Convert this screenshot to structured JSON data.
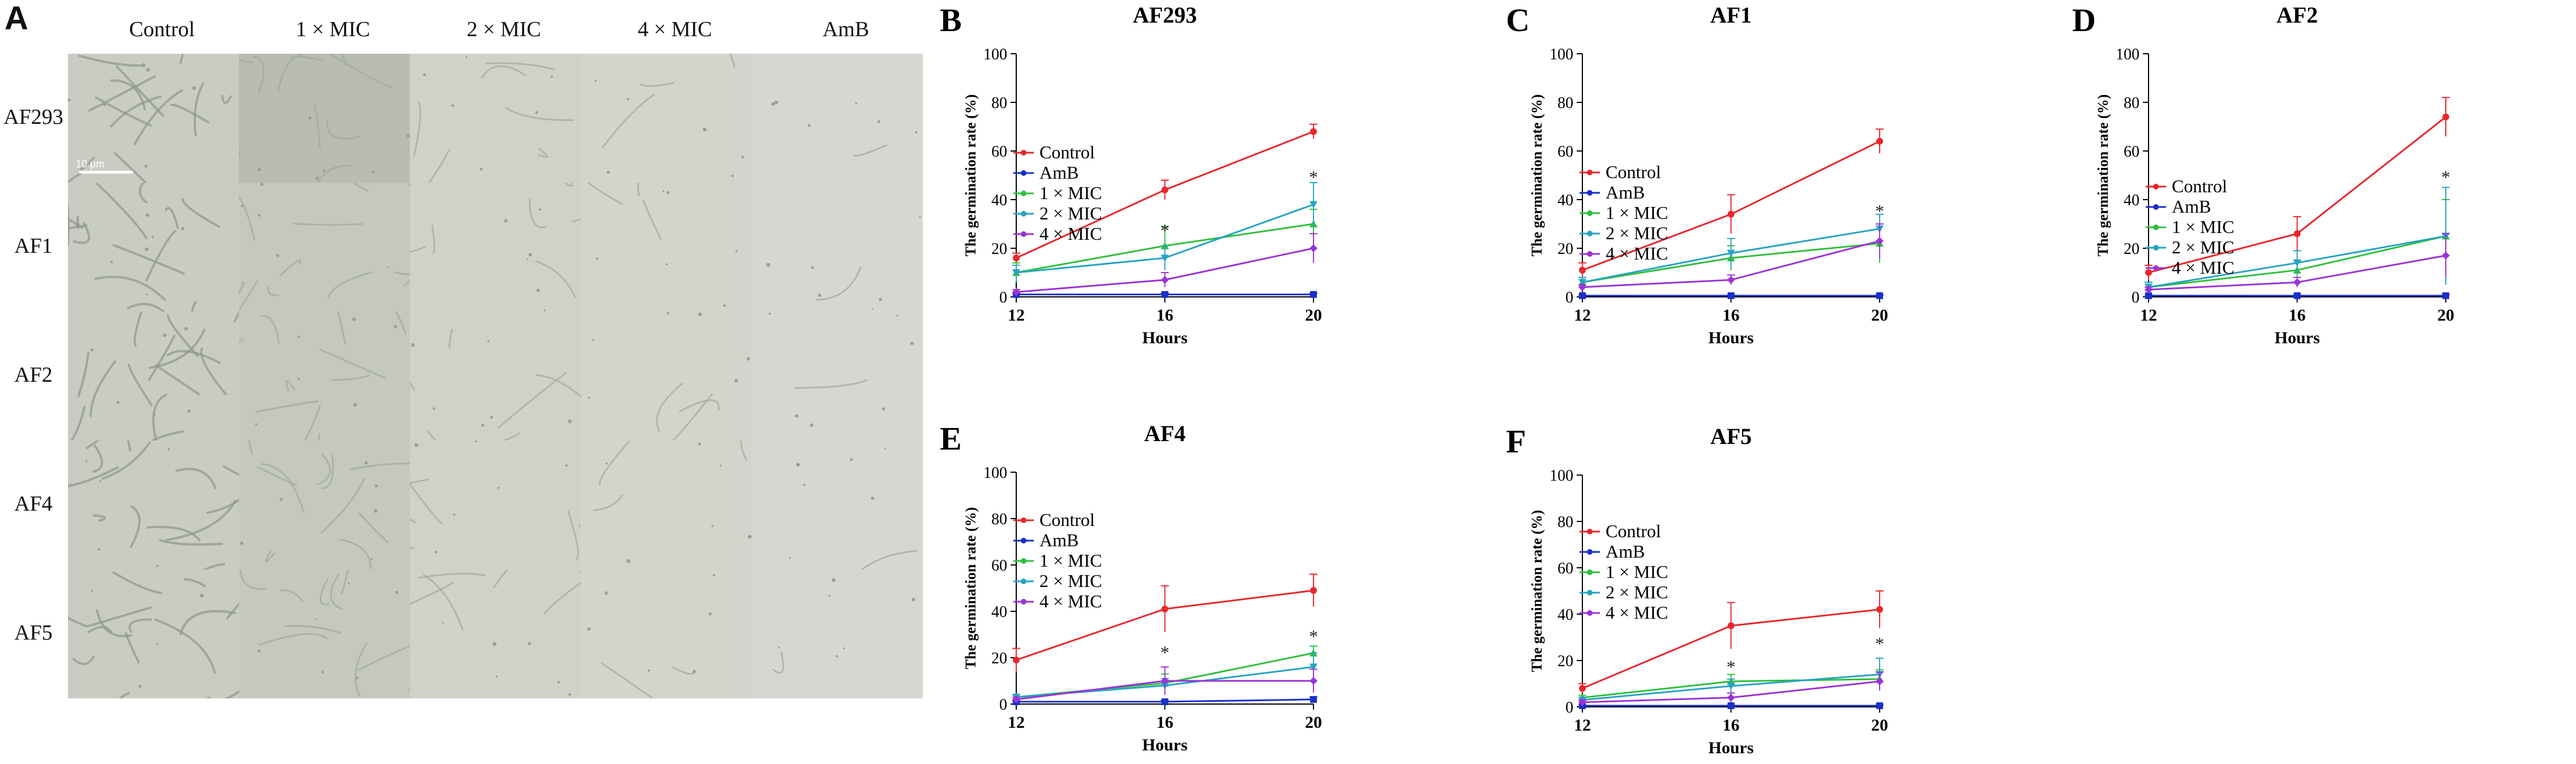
{
  "panel_a": {
    "letter": "A",
    "columns": [
      "Control",
      "1 × MIC",
      "2 × MIC",
      "4 × MIC",
      "AmB"
    ],
    "rows": [
      "AF293",
      "AF1",
      "AF2",
      "AF4",
      "AF5"
    ],
    "scale_bar": "10 μm"
  },
  "colors": {
    "Control": "#e8262b",
    "AmB": "#1a2fc9",
    "1 × MIC": "#2fbf3b",
    "2 × MIC": "#27a3c2",
    "4 × MIC": "#9b33d6"
  },
  "chart_data": [
    {
      "letter": "B",
      "title": "AF293",
      "type": "line",
      "xlabel": "Hours",
      "ylabel": "The germination rate (%)",
      "x": [
        12,
        16,
        20
      ],
      "ylim": [
        0,
        100
      ],
      "yticks": [
        0,
        20,
        40,
        60,
        80,
        100
      ],
      "series": [
        {
          "name": "Control",
          "values": [
            16,
            44,
            68
          ],
          "err": [
            2,
            4,
            3
          ]
        },
        {
          "name": "AmB",
          "values": [
            1,
            1,
            1
          ],
          "err": [
            0.5,
            0.5,
            0.5
          ]
        },
        {
          "name": "1 × MIC",
          "values": [
            10,
            21,
            30
          ],
          "err": [
            4,
            8,
            6
          ]
        },
        {
          "name": "2 × MIC",
          "values": [
            10,
            16,
            38
          ],
          "err": [
            3,
            5,
            9
          ]
        },
        {
          "name": "4 × MIC",
          "values": [
            2,
            7,
            20
          ],
          "err": [
            1,
            3,
            6
          ]
        }
      ],
      "annotations": [
        {
          "x": 16,
          "y": 28,
          "text": "*"
        },
        {
          "x": 20,
          "y": 50,
          "text": "*"
        }
      ]
    },
    {
      "letter": "C",
      "title": "AF1",
      "type": "line",
      "xlabel": "Hours",
      "ylabel": "The germination rate (%)",
      "x": [
        12,
        16,
        20
      ],
      "ylim": [
        0,
        100
      ],
      "yticks": [
        0,
        20,
        40,
        60,
        80,
        100
      ],
      "series": [
        {
          "name": "Control",
          "values": [
            11,
            34,
            64
          ],
          "err": [
            3,
            8,
            5
          ]
        },
        {
          "name": "AmB",
          "values": [
            0.5,
            0.5,
            0.5
          ],
          "err": [
            0.3,
            0.3,
            0.3
          ]
        },
        {
          "name": "1 × MIC",
          "values": [
            6,
            16,
            22
          ],
          "err": [
            2,
            5,
            8
          ]
        },
        {
          "name": "2 × MIC",
          "values": [
            6,
            18,
            28
          ],
          "err": [
            2,
            6,
            6
          ]
        },
        {
          "name": "4 × MIC",
          "values": [
            4,
            7,
            23
          ],
          "err": [
            1,
            2,
            7
          ]
        }
      ],
      "annotations": [
        {
          "x": 20,
          "y": 36,
          "text": "*"
        }
      ]
    },
    {
      "letter": "D",
      "title": "AF2",
      "type": "line",
      "xlabel": "Hours",
      "ylabel": "The germination rate (%)",
      "x": [
        12,
        16,
        20
      ],
      "ylim": [
        0,
        100
      ],
      "yticks": [
        0,
        20,
        40,
        60,
        80,
        100
      ],
      "series": [
        {
          "name": "Control",
          "values": [
            10,
            26,
            74
          ],
          "err": [
            3,
            7,
            8
          ]
        },
        {
          "name": "AmB",
          "values": [
            0.5,
            0.5,
            0.5
          ],
          "err": [
            0.3,
            0.3,
            0.3
          ]
        },
        {
          "name": "1 × MIC",
          "values": [
            4,
            11,
            25
          ],
          "err": [
            2,
            4,
            15
          ]
        },
        {
          "name": "2 × MIC",
          "values": [
            4,
            14,
            25
          ],
          "err": [
            2,
            5,
            20
          ]
        },
        {
          "name": "4 × MIC",
          "values": [
            3,
            6,
            17
          ],
          "err": [
            1,
            2,
            9
          ]
        }
      ],
      "annotations": [
        {
          "x": 20,
          "y": 50,
          "text": "*"
        }
      ]
    },
    {
      "letter": "E",
      "title": "AF4",
      "type": "line",
      "xlabel": "Hours",
      "ylabel": "The germination rate (%)",
      "x": [
        12,
        16,
        20
      ],
      "ylim": [
        0,
        100
      ],
      "yticks": [
        0,
        20,
        40,
        60,
        80,
        100
      ],
      "series": [
        {
          "name": "Control",
          "values": [
            19,
            41,
            49
          ],
          "err": [
            5,
            10,
            7
          ]
        },
        {
          "name": "AmB",
          "values": [
            1,
            1,
            2
          ],
          "err": [
            0.5,
            0.5,
            1
          ]
        },
        {
          "name": "1 × MIC",
          "values": [
            3,
            9,
            22
          ],
          "err": [
            1,
            4,
            3
          ]
        },
        {
          "name": "2 × MIC",
          "values": [
            3,
            8,
            16
          ],
          "err": [
            1,
            3,
            6
          ]
        },
        {
          "name": "4 × MIC",
          "values": [
            2,
            10,
            10
          ],
          "err": [
            1,
            6,
            5
          ]
        }
      ],
      "annotations": [
        {
          "x": 16,
          "y": 23,
          "text": "*"
        },
        {
          "x": 20,
          "y": 30,
          "text": "*"
        }
      ]
    },
    {
      "letter": "F",
      "title": "AF5",
      "type": "line",
      "xlabel": "Hours",
      "ylabel": "The germination rate (%)",
      "x": [
        12,
        16,
        20
      ],
      "ylim": [
        0,
        100
      ],
      "yticks": [
        0,
        20,
        40,
        60,
        80,
        100
      ],
      "series": [
        {
          "name": "Control",
          "values": [
            8,
            35,
            42
          ],
          "err": [
            2,
            10,
            8
          ]
        },
        {
          "name": "AmB",
          "values": [
            0.5,
            0.5,
            0.5
          ],
          "err": [
            0.3,
            0.3,
            0.3
          ]
        },
        {
          "name": "1 × MIC",
          "values": [
            4,
            11,
            12
          ],
          "err": [
            1,
            3,
            4
          ]
        },
        {
          "name": "2 × MIC",
          "values": [
            3,
            9,
            14
          ],
          "err": [
            1,
            3,
            7
          ]
        },
        {
          "name": "4 × MIC",
          "values": [
            2,
            4,
            11
          ],
          "err": [
            1,
            2,
            4
          ]
        }
      ],
      "annotations": [
        {
          "x": 16,
          "y": 18,
          "text": "*"
        },
        {
          "x": 20,
          "y": 28,
          "text": "*"
        }
      ]
    }
  ]
}
